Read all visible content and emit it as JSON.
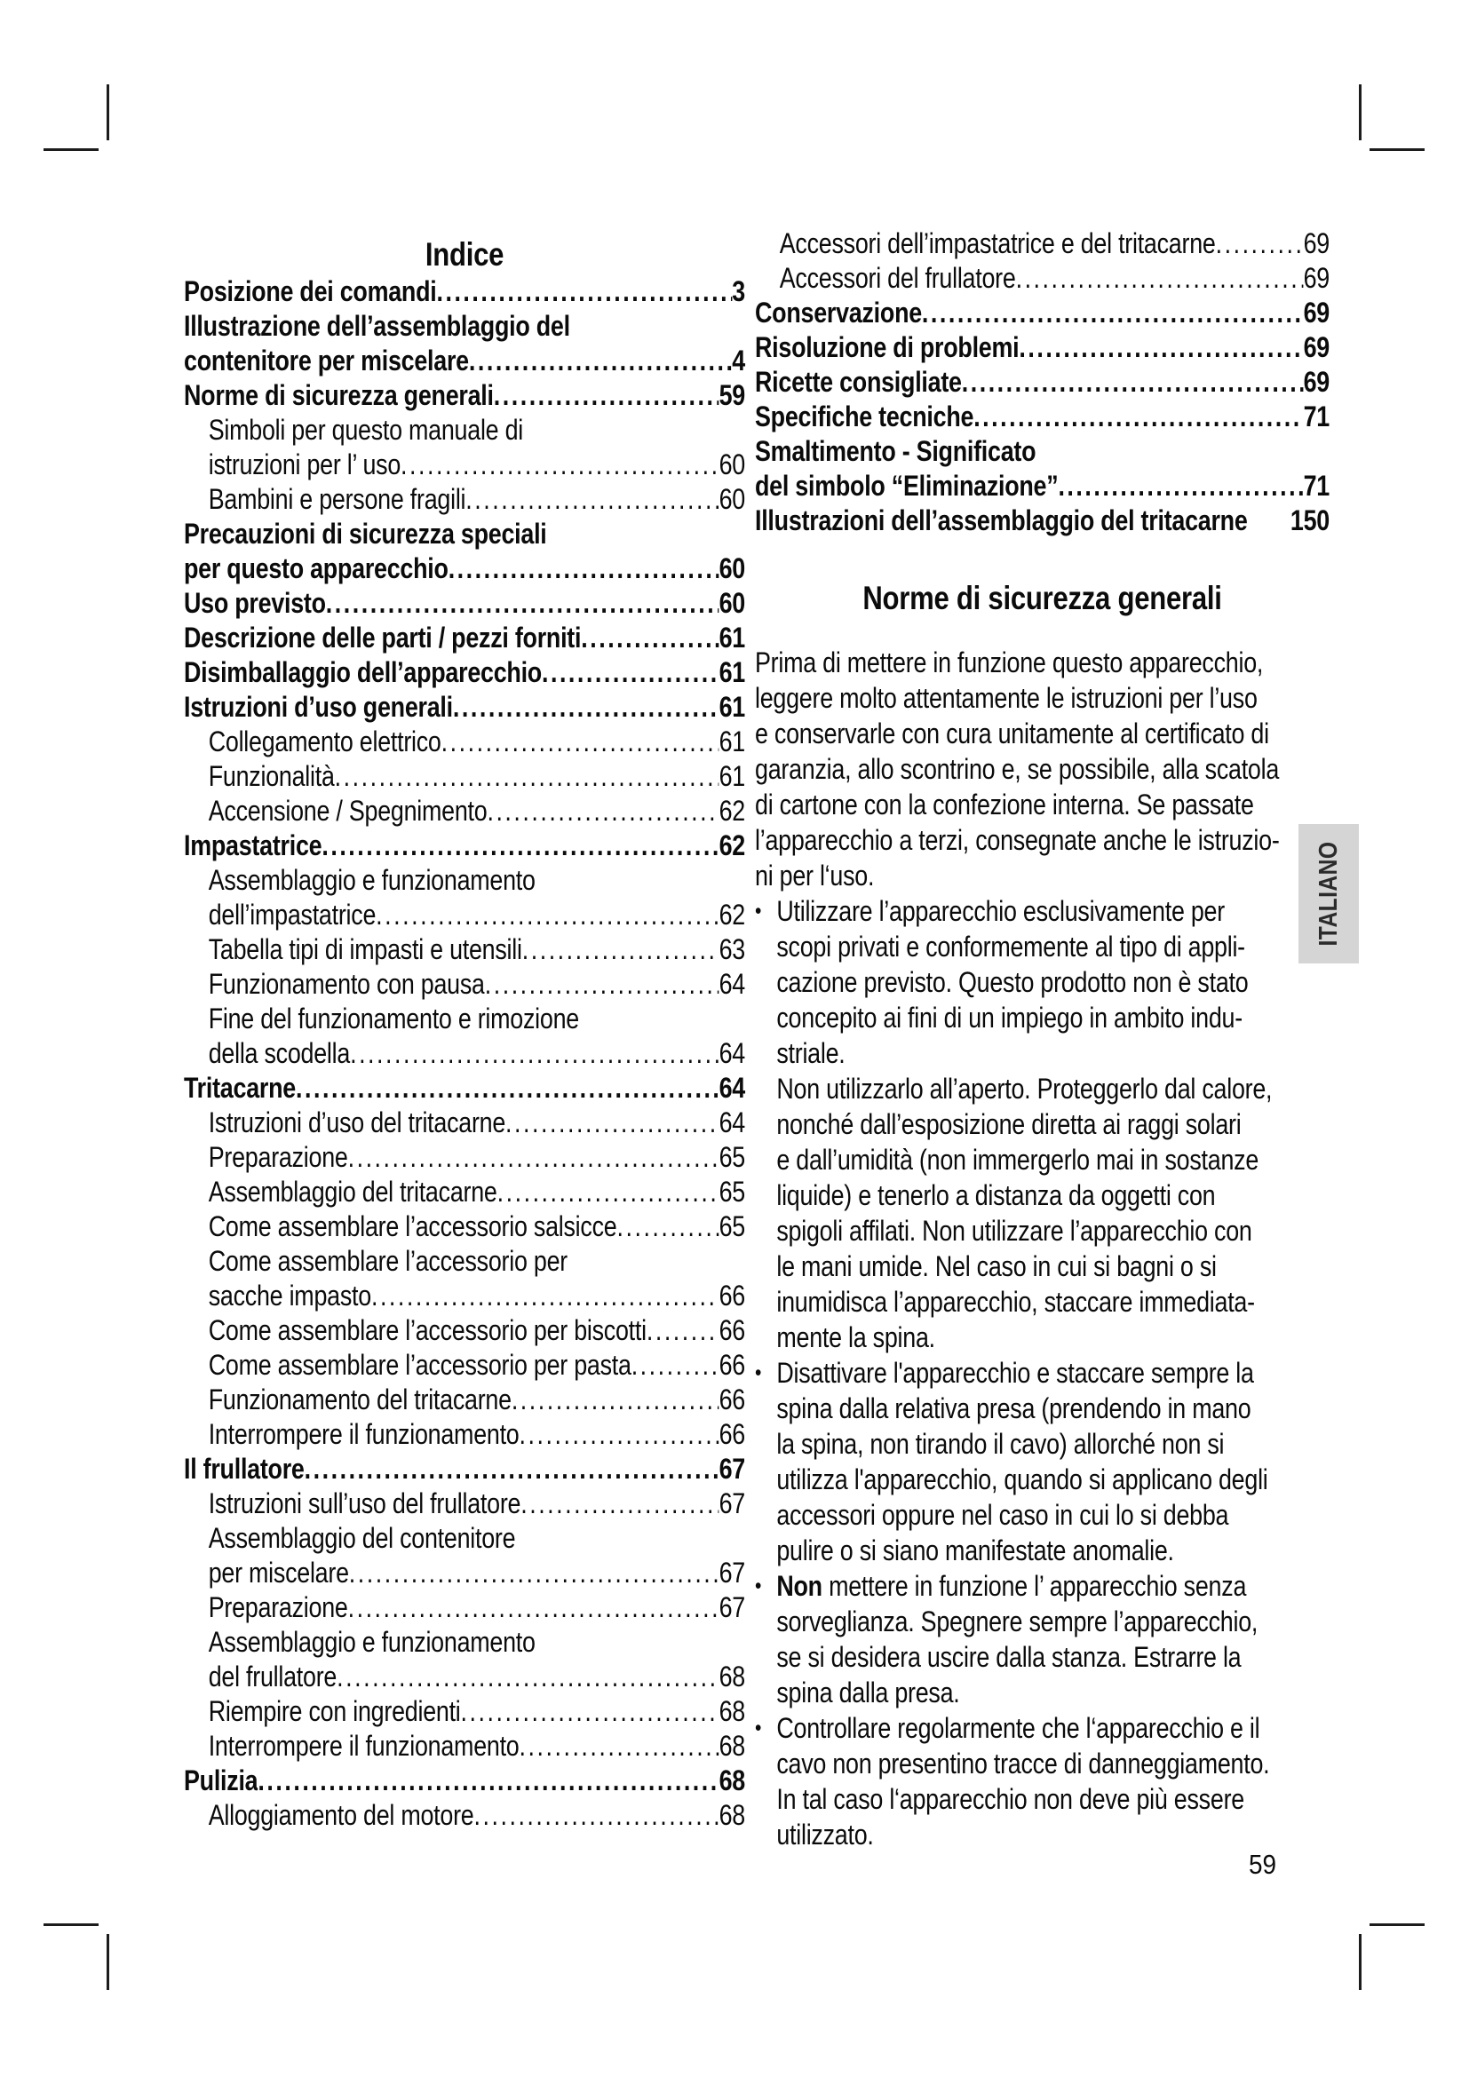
{
  "page": {
    "number": "59",
    "language_tab": "ITALIANO"
  },
  "toc": {
    "title": "Indice",
    "left": [
      {
        "text": "Posizione dei comandi",
        "page": "3",
        "bold": true,
        "indent": false,
        "dots": true
      },
      {
        "text": "Illustrazione dell’assemblaggio del",
        "bold": true,
        "indent": false,
        "dots": false
      },
      {
        "text": "contenitore per miscelare",
        "page": "4",
        "bold": true,
        "indent": false,
        "dots": true
      },
      {
        "text": "Norme di sicurezza generali",
        "page": "59",
        "bold": true,
        "indent": false,
        "dots": true
      },
      {
        "text": "Simboli per questo manuale di",
        "bold": false,
        "indent": true,
        "dots": false
      },
      {
        "text": "istruzioni per l’ uso",
        "page": "60",
        "bold": false,
        "indent": true,
        "dots": true
      },
      {
        "text": "Bambini e persone fragili",
        "page": "60",
        "bold": false,
        "indent": true,
        "dots": true
      },
      {
        "text": "Precauzioni di sicurezza speciali",
        "bold": true,
        "indent": false,
        "dots": false
      },
      {
        "text": "per questo apparecchio",
        "page": "60",
        "bold": true,
        "indent": false,
        "dots": true
      },
      {
        "text": "Uso previsto",
        "page": "60",
        "bold": true,
        "indent": false,
        "dots": true
      },
      {
        "text": "Descrizione delle parti / pezzi forniti",
        "page": "61",
        "bold": true,
        "indent": false,
        "dots": true
      },
      {
        "text": "Disimballaggio dell’apparecchio",
        "page": "61",
        "bold": true,
        "indent": false,
        "dots": true
      },
      {
        "text": "Istruzioni d’uso generali",
        "page": "61",
        "bold": true,
        "indent": false,
        "dots": true
      },
      {
        "text": "Collegamento elettrico",
        "page": "61",
        "bold": false,
        "indent": true,
        "dots": true
      },
      {
        "text": "Funzionalità",
        "page": "61",
        "bold": false,
        "indent": true,
        "dots": true
      },
      {
        "text": "Accensione / Spegnimento",
        "page": "62",
        "bold": false,
        "indent": true,
        "dots": true
      },
      {
        "text": "Impastatrice",
        "page": "62",
        "bold": true,
        "indent": false,
        "dots": true
      },
      {
        "text": "Assemblaggio e funzionamento",
        "bold": false,
        "indent": true,
        "dots": false
      },
      {
        "text": "dell’impastatrice",
        "page": "62",
        "bold": false,
        "indent": true,
        "dots": true
      },
      {
        "text": "Tabella tipi di impasti e utensili",
        "page": "63",
        "bold": false,
        "indent": true,
        "dots": true
      },
      {
        "text": "Funzionamento con pausa",
        "page": "64",
        "bold": false,
        "indent": true,
        "dots": true
      },
      {
        "text": "Fine del funzionamento e rimozione",
        "bold": false,
        "indent": true,
        "dots": false
      },
      {
        "text": "della scodella",
        "page": "64",
        "bold": false,
        "indent": true,
        "dots": true
      },
      {
        "text": "Tritacarne",
        "page": "64",
        "bold": true,
        "indent": false,
        "dots": true
      },
      {
        "text": "Istruzioni d’uso del tritacarne",
        "page": "64",
        "bold": false,
        "indent": true,
        "dots": true
      },
      {
        "text": "Preparazione",
        "page": "65",
        "bold": false,
        "indent": true,
        "dots": true
      },
      {
        "text": "Assemblaggio del tritacarne",
        "page": "65",
        "bold": false,
        "indent": true,
        "dots": true
      },
      {
        "text": "Come assemblare l’accessorio salsicce",
        "page": "65",
        "bold": false,
        "indent": true,
        "dots": true
      },
      {
        "text": "Come assemblare l’accessorio per",
        "bold": false,
        "indent": true,
        "dots": false
      },
      {
        "text": "sacche impasto",
        "page": "66",
        "bold": false,
        "indent": true,
        "dots": true
      },
      {
        "text": "Come assemblare l’accessorio per biscotti",
        "page": "66",
        "bold": false,
        "indent": true,
        "dots": true
      },
      {
        "text": "Come assemblare l’accessorio per pasta",
        "page": "66",
        "bold": false,
        "indent": true,
        "dots": true
      },
      {
        "text": "Funzionamento del tritacarne",
        "page": "66",
        "bold": false,
        "indent": true,
        "dots": true
      },
      {
        "text": "Interrompere il funzionamento",
        "page": "66",
        "bold": false,
        "indent": true,
        "dots": true
      },
      {
        "text": "Il frullatore",
        "page": "67",
        "bold": true,
        "indent": false,
        "dots": true
      },
      {
        "text": "Istruzioni sull’uso del frullatore",
        "page": "67",
        "bold": false,
        "indent": true,
        "dots": true
      },
      {
        "text": "Assemblaggio del contenitore",
        "bold": false,
        "indent": true,
        "dots": false
      },
      {
        "text": "per miscelare",
        "page": "67",
        "bold": false,
        "indent": true,
        "dots": true
      },
      {
        "text": "Preparazione",
        "page": "67",
        "bold": false,
        "indent": true,
        "dots": true
      },
      {
        "text": "Assemblaggio e funzionamento",
        "bold": false,
        "indent": true,
        "dots": false
      },
      {
        "text": "del frullatore",
        "page": "68",
        "bold": false,
        "indent": true,
        "dots": true
      },
      {
        "text": "Riempire con ingredienti",
        "page": "68",
        "bold": false,
        "indent": true,
        "dots": true
      },
      {
        "text": "Interrompere il funzionamento",
        "page": "68",
        "bold": false,
        "indent": true,
        "dots": true
      },
      {
        "text": "Pulizia",
        "page": "68",
        "bold": true,
        "indent": false,
        "dots": true
      },
      {
        "text": "Alloggiamento del motore",
        "page": "68",
        "bold": false,
        "indent": true,
        "dots": true
      }
    ],
    "right": [
      {
        "text": "Accessori dell’impastatrice e del tritacarne",
        "page": "69",
        "bold": false,
        "indent": true,
        "dots": true
      },
      {
        "text": "Accessori del frullatore",
        "page": "69",
        "bold": false,
        "indent": true,
        "dots": true
      },
      {
        "text": "Conservazione",
        "page": "69",
        "bold": true,
        "indent": false,
        "dots": true
      },
      {
        "text": "Risoluzione di problemi",
        "page": "69",
        "bold": true,
        "indent": false,
        "dots": true
      },
      {
        "text": "Ricette consigliate",
        "page": "69",
        "bold": true,
        "indent": false,
        "dots": true
      },
      {
        "text": "Specifiche tecniche",
        "page": "71",
        "bold": true,
        "indent": false,
        "dots": true
      },
      {
        "text": "Smaltimento - Significato",
        "bold": true,
        "indent": false,
        "dots": false
      },
      {
        "text": "del simbolo “Eliminazione”",
        "page": "71",
        "bold": true,
        "indent": false,
        "dots": true
      },
      {
        "text": "Illustrazioni dell’assemblaggio del tritacarne",
        "page": "150",
        "bold": true,
        "indent": false,
        "dots": false
      }
    ]
  },
  "section": {
    "title": "Norme di sicurezza generali",
    "blocks": [
      {
        "type": "paragraph",
        "lines": [
          "Prima di mettere in funzione questo apparecchio,",
          "leggere molto attentamente le istruzioni per l’uso",
          "e conservarle con cura unitamente al certificato di",
          "garanzia, allo scontrino e, se possibile, alla scatola",
          "di cartone con la confezione interna. Se passate",
          "l’apparecchio a terzi, consegnate anche le istruzio-",
          "ni per l‘uso."
        ]
      },
      {
        "type": "bullet",
        "lines": [
          "Utilizzare l’apparecchio esclusivamente per",
          "scopi privati e conformemente al tipo di appli-",
          "cazione previsto. Questo prodotto non è stato",
          "concepito ai fini di un impiego in ambito indu-",
          "striale.",
          "Non utilizzarlo all’aperto. Proteggerlo dal calore,",
          "nonché dall’esposizione diretta ai raggi solari",
          "e dall’umidità (non immergerlo mai in sostanze",
          "liquide) e tenerlo a distanza da oggetti con",
          "spigoli affilati. Non utilizzare l’apparecchio con",
          "le mani umide. Nel caso in cui si bagni o si",
          "inumidisca l’apparecchio, staccare immediata-",
          "mente la spina."
        ]
      },
      {
        "type": "bullet",
        "lines": [
          "Disattivare l'apparecchio e staccare sempre la",
          "spina dalla relativa presa (prendendo in mano",
          "la spina, non tirando il cavo) allorché non si",
          "utilizza l'apparecchio, quando si applicano degli",
          "accessori oppure nel caso in cui lo si debba",
          "pulire o si siano manifestate anomalie."
        ]
      },
      {
        "type": "bullet",
        "bold_first_word": true,
        "lines": [
          "Non mettere in funzione l’ apparecchio senza",
          "sorveglianza. Spegnere sempre l’apparecchio,",
          "se si desidera uscire dalla stanza. Estrarre la",
          "spina dalla presa."
        ]
      },
      {
        "type": "bullet",
        "lines": [
          "Controllare regolarmente che l‘apparecchio e il",
          "cavo non presentino tracce di danneggiamento.",
          "In tal caso l‘apparecchio non deve più essere",
          "utilizzato."
        ]
      }
    ]
  }
}
